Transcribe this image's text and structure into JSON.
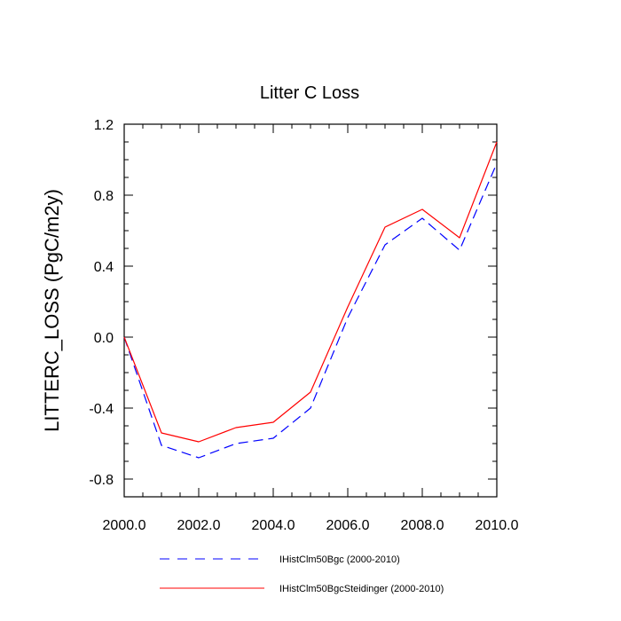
{
  "chart_data": {
    "type": "line",
    "title": "Litter C Loss",
    "xlabel": "",
    "ylabel": "LITTERC_LOSS  (PgC/m2y)",
    "xlim": [
      2000,
      2010
    ],
    "ylim": [
      -0.9,
      1.2
    ],
    "x_ticks": [
      2000,
      2002,
      2004,
      2006,
      2008,
      2010
    ],
    "x_tick_labels": [
      "2000.0",
      "2002.0",
      "2004.0",
      "2006.0",
      "2008.0",
      "2010.0"
    ],
    "y_ticks": [
      -0.8,
      -0.4,
      0.0,
      0.4,
      0.8,
      1.2
    ],
    "y_tick_labels": [
      "-0.8",
      "-0.4",
      "0.0",
      "0.4",
      "0.8",
      "1.2"
    ],
    "grid": false,
    "legend_position": "bottom",
    "x": [
      2000,
      2001,
      2002,
      2003,
      2004,
      2005,
      2006,
      2007,
      2008,
      2009,
      2010
    ],
    "series": [
      {
        "name": "IHistClm50Bgc (2000-2010)",
        "color": "#0000ff",
        "dash": "dashed",
        "values": [
          0.0,
          -0.61,
          -0.68,
          -0.6,
          -0.57,
          -0.4,
          0.11,
          0.52,
          0.67,
          0.49,
          0.98
        ]
      },
      {
        "name": "IHistClm50BgcSteidinger (2000-2010)",
        "color": "#ff0000",
        "dash": "solid",
        "values": [
          0.0,
          -0.54,
          -0.59,
          -0.51,
          -0.48,
          -0.31,
          0.17,
          0.62,
          0.72,
          0.56,
          1.1
        ]
      }
    ]
  }
}
